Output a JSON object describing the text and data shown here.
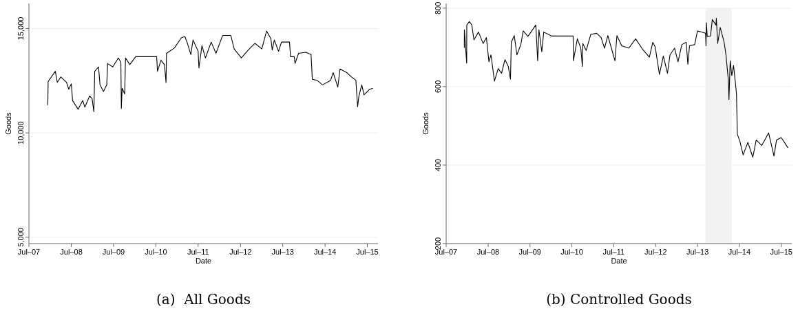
{
  "chart_data": [
    {
      "type": "line",
      "xlabel": "Date",
      "ylabel": "Goods",
      "annotations": [
        "(a)  All Goods"
      ],
      "grid": "y",
      "marker": "none",
      "line_style": "solid",
      "xlim": [
        "2007-07-01",
        "2015-10-01"
      ],
      "xticks": [
        {
          "value": "2007-07-01",
          "label": "Jul–07"
        },
        {
          "value": "2008-07-01",
          "label": "Jul–08"
        },
        {
          "value": "2009-07-01",
          "label": "Jul–09"
        },
        {
          "value": "2010-07-01",
          "label": "Jul–10"
        },
        {
          "value": "2011-07-01",
          "label": "Jul–11"
        },
        {
          "value": "2012-07-01",
          "label": "Jul–12"
        },
        {
          "value": "2013-07-01",
          "label": "Jul–13"
        },
        {
          "value": "2014-07-01",
          "label": "Jul–14"
        },
        {
          "value": "2015-07-01",
          "label": "Jul–15"
        }
      ],
      "ylim": [
        4700,
        16200
      ],
      "yticks": [
        {
          "value": 5000,
          "label": "5,000"
        },
        {
          "value": 10000,
          "label": "10,000"
        },
        {
          "value": 15000,
          "label": "15,000"
        }
      ],
      "series": [
        {
          "color": "#000000",
          "x": [
            "2007-12-11",
            "2007-12-14",
            "2008-02-14",
            "2008-03-02",
            "2008-04-01",
            "2008-05-21",
            "2008-06-09",
            "2008-07-01",
            "2008-07-12",
            "2008-08-29",
            "2008-10-08",
            "2008-10-26",
            "2008-12-06",
            "2008-12-27",
            "2009-01-12",
            "2009-01-19",
            "2009-02-21",
            "2009-03-06",
            "2009-04-05",
            "2009-05-03",
            "2009-05-11",
            "2009-06-24",
            "2009-08-11",
            "2009-09-02",
            "2009-09-06",
            "2009-09-13",
            "2009-10-05",
            "2009-10-12",
            "2009-11-18",
            "2010-01-08",
            "2010-07-08",
            "2010-07-15",
            "2010-08-14",
            "2010-09-13",
            "2010-09-27",
            "2010-10-01",
            "2010-12-09",
            "2011-02-07",
            "2011-03-09",
            "2011-03-27",
            "2011-04-29",
            "2011-05-18",
            "2011-07-01",
            "2011-07-08",
            "2011-08-03",
            "2011-09-02",
            "2011-10-22",
            "2011-12-02",
            "2012-01-29",
            "2012-04-08",
            "2012-05-07",
            "2012-07-08",
            "2012-09-06",
            "2012-11-03",
            "2013-01-01",
            "2013-02-11",
            "2013-03-20",
            "2013-04-01",
            "2013-04-19",
            "2013-05-25",
            "2013-06-20",
            "2013-08-28",
            "2013-09-06",
            "2013-10-08",
            "2013-10-15",
            "2013-11-14",
            "2014-01-15",
            "2014-03-02",
            "2014-03-13",
            "2014-04-22",
            "2014-06-09",
            "2014-08-18",
            "2014-09-09",
            "2014-10-19",
            "2014-11-07",
            "2015-01-04",
            "2015-02-14",
            "2015-03-24",
            "2015-04-08",
            "2015-04-19",
            "2015-05-14",
            "2015-06-02",
            "2015-07-22",
            "2015-08-18"
          ],
          "values": [
            11330,
            12460,
            12950,
            12420,
            12680,
            12420,
            12090,
            12350,
            11550,
            11130,
            11550,
            11230,
            11770,
            11650,
            11010,
            12950,
            13160,
            12300,
            11980,
            12300,
            13320,
            13160,
            13590,
            13380,
            11170,
            12140,
            11870,
            13590,
            13270,
            13650,
            13650,
            12950,
            13480,
            13270,
            12410,
            13810,
            14070,
            14560,
            14610,
            14350,
            13750,
            14450,
            13910,
            13110,
            14180,
            13590,
            14350,
            13810,
            14670,
            14670,
            14020,
            13590,
            13970,
            14290,
            14020,
            14880,
            14510,
            13970,
            14450,
            13910,
            14350,
            14350,
            13650,
            13650,
            13320,
            13810,
            13860,
            13750,
            12570,
            12520,
            12300,
            12520,
            12890,
            12190,
            13060,
            12890,
            12680,
            12520,
            11250,
            11760,
            12300,
            11820,
            12090,
            12140
          ]
        }
      ]
    },
    {
      "type": "line",
      "xlabel": "Date",
      "ylabel": "Goods",
      "annotations": [
        "(b) Controlled Goods"
      ],
      "grid": "y",
      "marker": "none",
      "line_style": "solid",
      "xlim": [
        "2007-07-01",
        "2015-10-01"
      ],
      "xticks": [
        {
          "value": "2007-07-01",
          "label": "Jul–07"
        },
        {
          "value": "2008-07-01",
          "label": "Jul–08"
        },
        {
          "value": "2009-07-01",
          "label": "Jul–09"
        },
        {
          "value": "2010-07-01",
          "label": "Jul–10"
        },
        {
          "value": "2011-07-01",
          "label": "Jul–11"
        },
        {
          "value": "2012-07-01",
          "label": "Jul–12"
        },
        {
          "value": "2013-07-01",
          "label": "Jul–13"
        },
        {
          "value": "2014-07-01",
          "label": "Jul–14"
        },
        {
          "value": "2015-07-01",
          "label": "Jul–15"
        }
      ],
      "ylim": [
        200,
        812
      ],
      "yticks": [
        200,
        400,
        600,
        800
      ],
      "bands": [
        {
          "axis": "x",
          "from": "2013-09-09",
          "to": "2014-04-26",
          "color": "#f2f2f2"
        }
      ],
      "series": [
        {
          "color": "#000000",
          "x": [
            "2007-12-06",
            "2007-12-07",
            "2007-12-27",
            "2007-12-28",
            "2008-01-19",
            "2008-02-10",
            "2008-02-28",
            "2008-04-08",
            "2008-05-18",
            "2008-06-16",
            "2008-07-08",
            "2008-07-26",
            "2008-08-25",
            "2008-09-27",
            "2008-10-26",
            "2008-11-25",
            "2008-12-24",
            "2009-01-12",
            "2009-01-19",
            "2009-02-14",
            "2009-03-09",
            "2009-04-12",
            "2009-05-03",
            "2009-06-13",
            "2009-08-21",
            "2009-09-06",
            "2009-09-17",
            "2009-10-12",
            "2009-10-29",
            "2010-01-04",
            "2010-07-12",
            "2010-07-15",
            "2010-08-18",
            "2010-09-17",
            "2010-10-01",
            "2010-10-05",
            "2010-11-03",
            "2010-12-13",
            "2011-02-03",
            "2011-03-13",
            "2011-04-12",
            "2011-05-11",
            "2011-07-12",
            "2011-07-29",
            "2011-09-09",
            "2011-11-10",
            "2012-01-08",
            "2012-03-09",
            "2012-05-07",
            "2012-06-06",
            "2012-06-27",
            "2012-08-03",
            "2012-09-06",
            "2012-10-12",
            "2012-11-03",
            "2012-12-13",
            "2013-01-12",
            "2013-02-14",
            "2013-03-24",
            "2013-04-08",
            "2013-04-22",
            "2013-06-06",
            "2013-07-01",
            "2013-09-09",
            "2013-09-13",
            "2013-09-16",
            "2013-09-24",
            "2013-10-22",
            "2013-11-07",
            "2013-12-09",
            "2013-12-12",
            "2013-12-24",
            "2014-01-15",
            "2014-02-18",
            "2014-03-06",
            "2014-03-27",
            "2014-04-01",
            "2014-04-12",
            "2014-04-26",
            "2014-05-11",
            "2014-05-25",
            "2014-06-06",
            "2014-06-13",
            "2014-07-05",
            "2014-08-03",
            "2014-09-13",
            "2014-10-26",
            "2014-11-25",
            "2015-01-12",
            "2015-03-13",
            "2015-04-29",
            "2015-05-21",
            "2015-07-01",
            "2015-07-29",
            "2015-08-28"
          ],
          "values": [
            699,
            745,
            660,
            757,
            766,
            757,
            719,
            739,
            710,
            725,
            663,
            681,
            614,
            646,
            634,
            669,
            651,
            619,
            713,
            730,
            681,
            707,
            742,
            728,
            757,
            666,
            745,
            689,
            739,
            729,
            729,
            666,
            722,
            698,
            651,
            710,
            692,
            733,
            736,
            725,
            698,
            730,
            666,
            730,
            704,
            698,
            722,
            695,
            675,
            713,
            701,
            631,
            678,
            634,
            681,
            698,
            663,
            707,
            713,
            657,
            704,
            707,
            742,
            736,
            704,
            763,
            728,
            729,
            771,
            757,
            774,
            710,
            751,
            713,
            681,
            616,
            567,
            666,
            628,
            654,
            616,
            581,
            479,
            461,
            426,
            458,
            420,
            464,
            450,
            482,
            423,
            464,
            470,
            458,
            444
          ]
        }
      ]
    }
  ]
}
